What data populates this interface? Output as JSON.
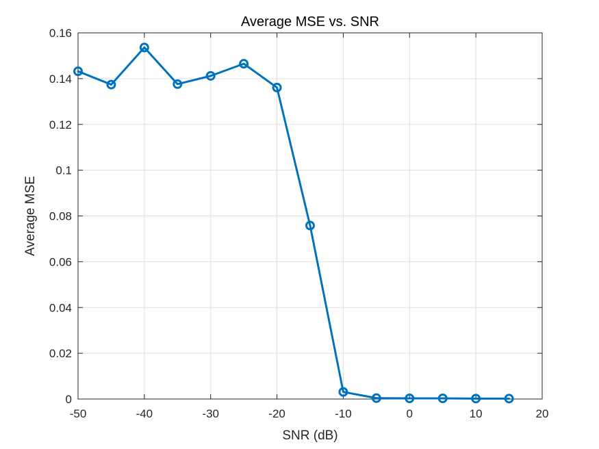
{
  "chart_data": {
    "type": "line",
    "title": "Average MSE vs. SNR",
    "xlabel": "SNR (dB)",
    "ylabel": "Average MSE",
    "xlim": [
      -50,
      20
    ],
    "ylim": [
      0,
      0.16
    ],
    "xticks": [
      -50,
      -40,
      -30,
      -20,
      -10,
      0,
      10,
      20
    ],
    "xtick_labels": [
      "-50",
      "-40",
      "-30",
      "-20",
      "-10",
      "0",
      "10",
      "20"
    ],
    "yticks": [
      0,
      0.02,
      0.04,
      0.06,
      0.08,
      0.1,
      0.12,
      0.14,
      0.16
    ],
    "ytick_labels": [
      "0",
      "0.02",
      "0.04",
      "0.06",
      "0.08",
      "0.1",
      "0.12",
      "0.14",
      "0.16"
    ],
    "grid": true,
    "marker": "circle",
    "line_color": "#0072BD",
    "series": [
      {
        "x": [
          -50,
          -45,
          -40,
          -35,
          -30,
          -25,
          -20,
          -15,
          -10,
          -5,
          0,
          5,
          10,
          15
        ],
        "y": [
          0.1432,
          0.1374,
          0.1536,
          0.1376,
          0.1412,
          0.1465,
          0.1361,
          0.0758,
          0.0031,
          0.0004,
          0.0003,
          0.0003,
          0.0002,
          0.0002
        ]
      }
    ]
  }
}
